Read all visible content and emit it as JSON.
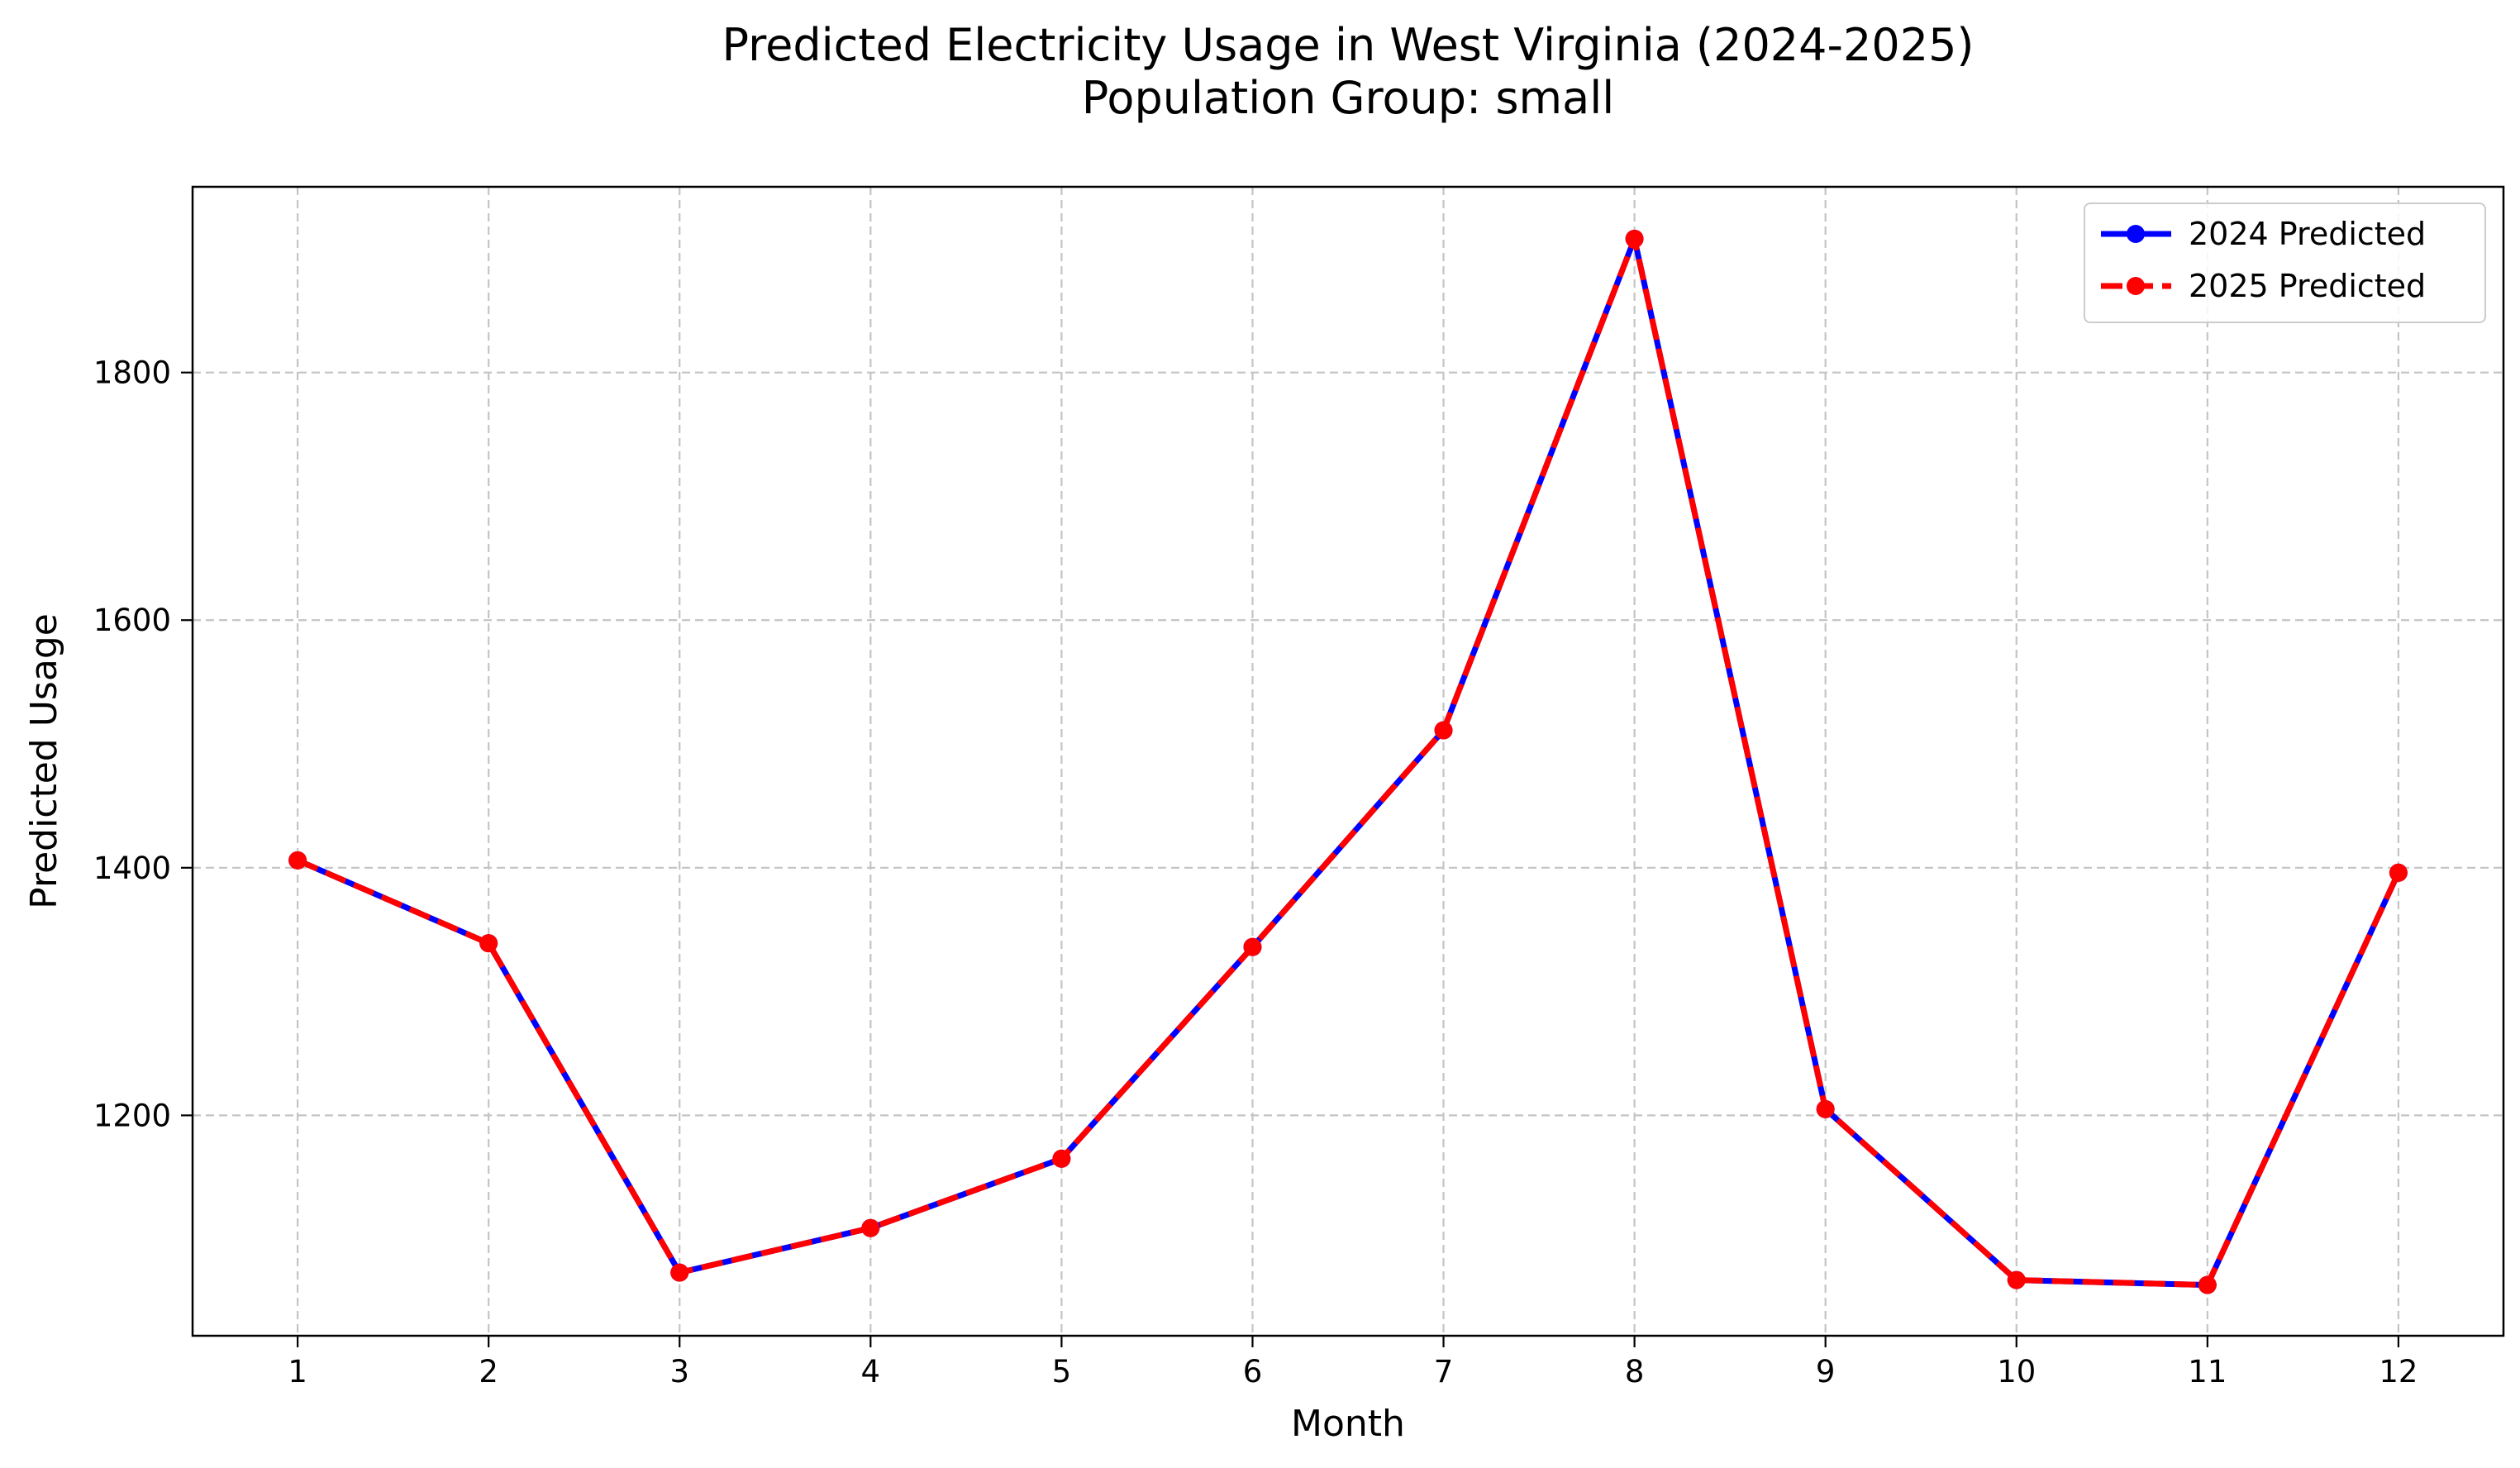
{
  "chart_data": {
    "type": "line",
    "title": "Predicted Electricity Usage in West Virginia (2024-2025)",
    "subtitle": "Population Group: small",
    "xlabel": "Month",
    "ylabel": "Predicted Usage",
    "x": [
      1,
      2,
      3,
      4,
      5,
      6,
      7,
      8,
      9,
      10,
      11,
      12
    ],
    "xlim": [
      0.45,
      12.55
    ],
    "ylim": [
      1022,
      1950
    ],
    "yticks": [
      1200,
      1400,
      1600,
      1800
    ],
    "grid": true,
    "legend_position": "top-right",
    "series": [
      {
        "name": "2024 Predicted",
        "color": "#0000ff",
        "line_style": "solid",
        "marker": "circle",
        "values": [
          1406,
          1339,
          1073,
          1109,
          1165,
          1336,
          1511,
          1908,
          1205,
          1067,
          1063,
          1396
        ]
      },
      {
        "name": "2025 Predicted",
        "color": "#ff0000",
        "line_style": "dashed",
        "marker": "circle",
        "values": [
          1406,
          1339,
          1073,
          1109,
          1165,
          1336,
          1511,
          1908,
          1205,
          1067,
          1063,
          1396
        ]
      }
    ]
  }
}
